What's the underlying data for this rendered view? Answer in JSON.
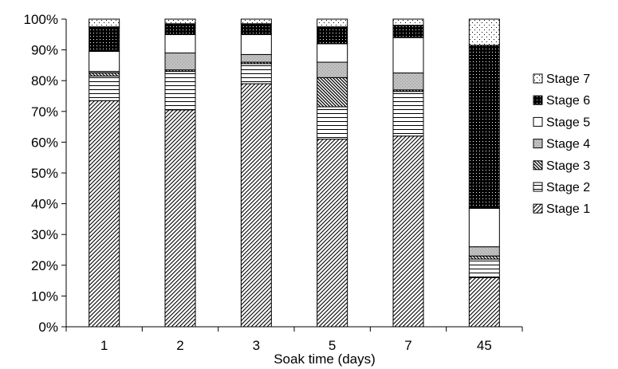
{
  "chart_data": {
    "type": "bar",
    "stacked": true,
    "normalized": true,
    "title": "",
    "xlabel": "Soak time (days)",
    "ylabel": "",
    "ylim": [
      0,
      100
    ],
    "y_ticks": [
      "0%",
      "10%",
      "20%",
      "30%",
      "40%",
      "50%",
      "60%",
      "70%",
      "80%",
      "90%",
      "100%"
    ],
    "categories": [
      "1",
      "2",
      "3",
      "5",
      "7",
      "45"
    ],
    "series": [
      {
        "name": "Stage 1",
        "values": [
          73.5,
          70.5,
          79,
          61,
          62,
          16
        ],
        "pattern": "diagonal-hatch"
      },
      {
        "name": "Stage 2",
        "values": [
          8,
          12.5,
          6.5,
          10.5,
          14.5,
          6
        ],
        "pattern": "horizontal-lines"
      },
      {
        "name": "Stage 3",
        "values": [
          1,
          0.5,
          0.5,
          9.5,
          0.5,
          1
        ],
        "pattern": "dense-diagonal"
      },
      {
        "name": "Stage 4",
        "values": [
          0.5,
          5.5,
          2.5,
          5,
          5.5,
          3
        ],
        "pattern": "gray"
      },
      {
        "name": "Stage 5",
        "values": [
          6.5,
          6,
          6.5,
          6,
          11.5,
          12.5
        ],
        "pattern": "white"
      },
      {
        "name": "Stage 6",
        "values": [
          8,
          3.5,
          3.5,
          5.5,
          4,
          53
        ],
        "pattern": "black-dots"
      },
      {
        "name": "Stage 7",
        "values": [
          2.5,
          1.5,
          1.5,
          2.5,
          2,
          8.5
        ],
        "pattern": "sparse-dots"
      }
    ],
    "legend": {
      "position": "right",
      "order": [
        "Stage 7",
        "Stage 6",
        "Stage 5",
        "Stage 4",
        "Stage 3",
        "Stage 2",
        "Stage 1"
      ]
    },
    "grid": false,
    "colors": {
      "axis": "#000000",
      "bar_outline": "#000000",
      "background": "#ffffff",
      "gray_fill": "#c0c0c0"
    }
  }
}
